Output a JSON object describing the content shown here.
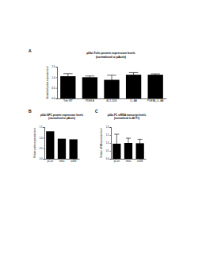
{
  "chart_data": [
    {
      "type": "bar",
      "annotation": "A",
      "title": "pUbi-Tsfin protein expression levels",
      "subtitle": "(normalised to pActin)",
      "y_label": "Normalised protein expression level",
      "categories": [
        "Tsfin WT",
        "PDE8 A",
        "ΔC1-DDD",
        "LL-AA",
        "PDE8A_LL-AA"
      ],
      "values": [
        1.05,
        1.0,
        0.88,
        1.12,
        1.12
      ],
      "errors": [
        0.12,
        0.06,
        0.22,
        0.1,
        0.04
      ],
      "color": "#000000",
      "ylim": [
        0,
        1.5
      ],
      "yticks": [
        {
          "value": 0,
          "label": "0.0"
        },
        {
          "value": 0.5,
          "label": "0.5"
        },
        {
          "value": 1,
          "label": "1.0"
        },
        {
          "value": 1.5,
          "label": "1.5"
        }
      ]
    },
    {
      "type": "bar",
      "annotation": "B",
      "title": "pUbi-NPC protein expression levels",
      "subtitle": "(normalised to pActin)",
      "y_label": "Relative protein expression level",
      "categories": [
        "pC-en",
        "nmsu",
        "cn333"
      ],
      "values": [
        1.3,
        0.95,
        0.92
      ],
      "color": "#000000",
      "ylim": [
        0,
        1.5
      ],
      "yticks": [
        {
          "value": 0,
          "label": "0.0"
        },
        {
          "value": 0.5,
          "label": "0.5"
        },
        {
          "value": 1,
          "label": "1.0"
        },
        {
          "value": 1.5,
          "label": "1.5"
        }
      ]
    },
    {
      "type": "bar",
      "annotation": "C",
      "title": "pUbi-PC mRNA transcript levels",
      "subtitle": "(normalised to ACT1)",
      "y_label": "Relative mRNA expression level",
      "categories": [
        "pC-en",
        "nmsu",
        "cn333"
      ],
      "values": [
        0.95,
        1.0,
        0.98
      ],
      "errors": [
        0.6,
        0.3,
        0.25
      ],
      "color": "#000000",
      "ylim": [
        0,
        2
      ],
      "yticks": [
        {
          "value": 0,
          "label": "0.0"
        },
        {
          "value": 0.5,
          "label": "0.5"
        },
        {
          "value": 1,
          "label": "1.0"
        },
        {
          "value": 1.5,
          "label": "1.5"
        },
        {
          "value": 2,
          "label": "2.0"
        }
      ]
    }
  ]
}
